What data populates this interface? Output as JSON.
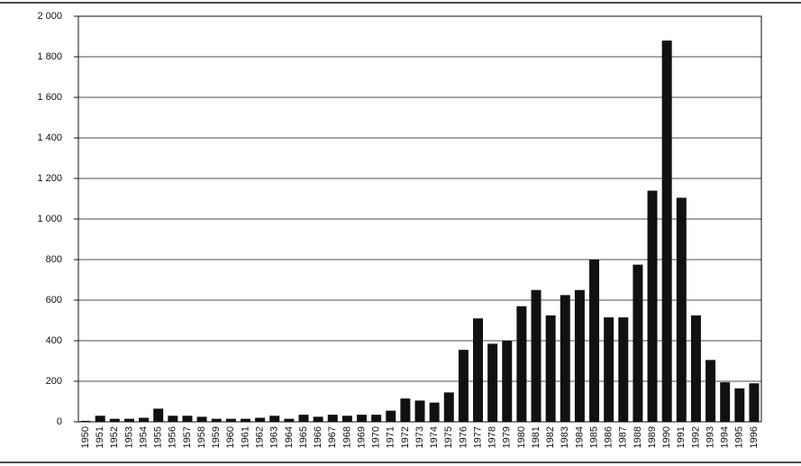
{
  "chart_data": {
    "type": "bar",
    "categories": [
      "1950",
      "1951",
      "1952",
      "1953",
      "1954",
      "1955",
      "1956",
      "1957",
      "1958",
      "1959",
      "1960",
      "1961",
      "1962",
      "1963",
      "1964",
      "1965",
      "1966",
      "1967",
      "1968",
      "1969",
      "1970",
      "1971",
      "1972",
      "1973",
      "1974",
      "1975",
      "1976",
      "1977",
      "1978",
      "1979",
      "1980",
      "1981",
      "1982",
      "1983",
      "1984",
      "1985",
      "1986",
      "1987",
      "1988",
      "1989",
      "1990",
      "1991",
      "1992",
      "1993",
      "1994",
      "1995",
      "1996"
    ],
    "values": [
      5,
      30,
      15,
      15,
      20,
      65,
      30,
      30,
      25,
      15,
      15,
      15,
      20,
      30,
      15,
      35,
      25,
      35,
      30,
      35,
      35,
      55,
      115,
      105,
      95,
      145,
      355,
      510,
      385,
      400,
      570,
      650,
      525,
      625,
      650,
      800,
      515,
      515,
      775,
      1140,
      1880,
      1105,
      525,
      305,
      195,
      165,
      190
    ],
    "color": "#111111",
    "ylim": [
      0,
      2000
    ],
    "yticks": [
      0,
      200,
      400,
      600,
      800,
      {
        "value": 1000,
        "label": "1 000"
      },
      {
        "value": 1200,
        "label": "1 200"
      },
      {
        "value": 1400,
        "label": "1 400"
      },
      {
        "value": 1600,
        "label": "1 600"
      },
      {
        "value": 1800,
        "label": "1 800"
      },
      {
        "value": 2000,
        "label": "2 000"
      }
    ],
    "grid": true
  }
}
